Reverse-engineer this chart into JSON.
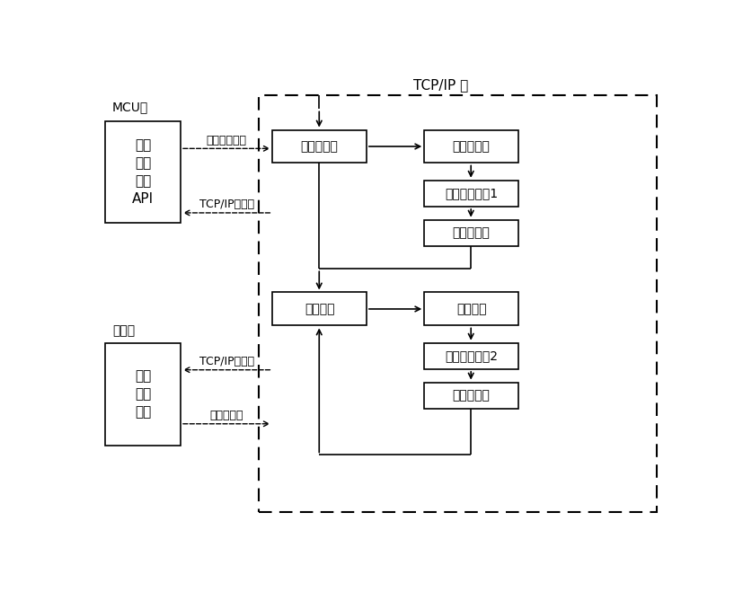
{
  "title": "TCP/IP 栈",
  "bg_color": "#ffffff",
  "box_edge_color": "#000000",
  "mcu_label": "MCU端",
  "net_label": "网络端",
  "api_box": "应用\n程序\n接口\nAPI",
  "net_box": "网络\n应用\n服务",
  "check_box": "数据包检查",
  "process_box": "数据包处理",
  "app_event1_box": "应用程序事件1",
  "out1_box": "数据包输出",
  "timeout_box": "超时检测",
  "timeout_proc_box": "超时处理",
  "app_event2_box": "应用程序事件2",
  "out2_box": "数据包输出",
  "arrow_send": "欲发送的数据",
  "arrow_tcp1": "TCP/IP数据包",
  "arrow_tcp2": "TCP/IP数据包",
  "arrow_recv": "接收的数据"
}
